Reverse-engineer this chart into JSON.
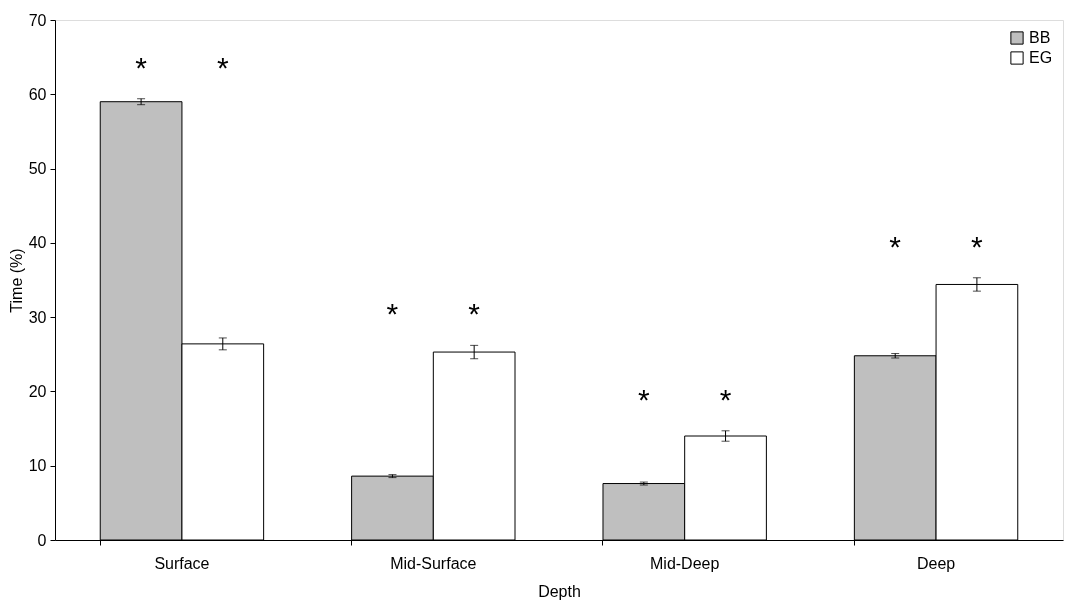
{
  "chart_data": {
    "type": "bar",
    "xlabel": "Depth",
    "ylabel": "Time (%)",
    "categories": [
      "Surface",
      "Mid-Surface",
      "Mid-Deep",
      "Deep"
    ],
    "series": [
      {
        "name": "BB",
        "color": "#bfbfbf",
        "values": [
          59.0,
          8.6,
          7.6,
          24.8
        ],
        "errors": [
          0.4,
          0.2,
          0.2,
          0.3
        ]
      },
      {
        "name": "EG",
        "color": "#ffffff",
        "values": [
          26.4,
          25.3,
          14.0,
          34.4
        ],
        "errors": [
          0.8,
          0.9,
          0.7,
          0.9
        ]
      }
    ],
    "ylim": [
      0,
      70
    ],
    "yticks": [
      0,
      10,
      20,
      30,
      40,
      50,
      60,
      70
    ],
    "grid": false,
    "legend": "top right",
    "annotations": [
      "*",
      "*",
      "*",
      "*",
      "*",
      "*",
      "*",
      "*"
    ]
  }
}
